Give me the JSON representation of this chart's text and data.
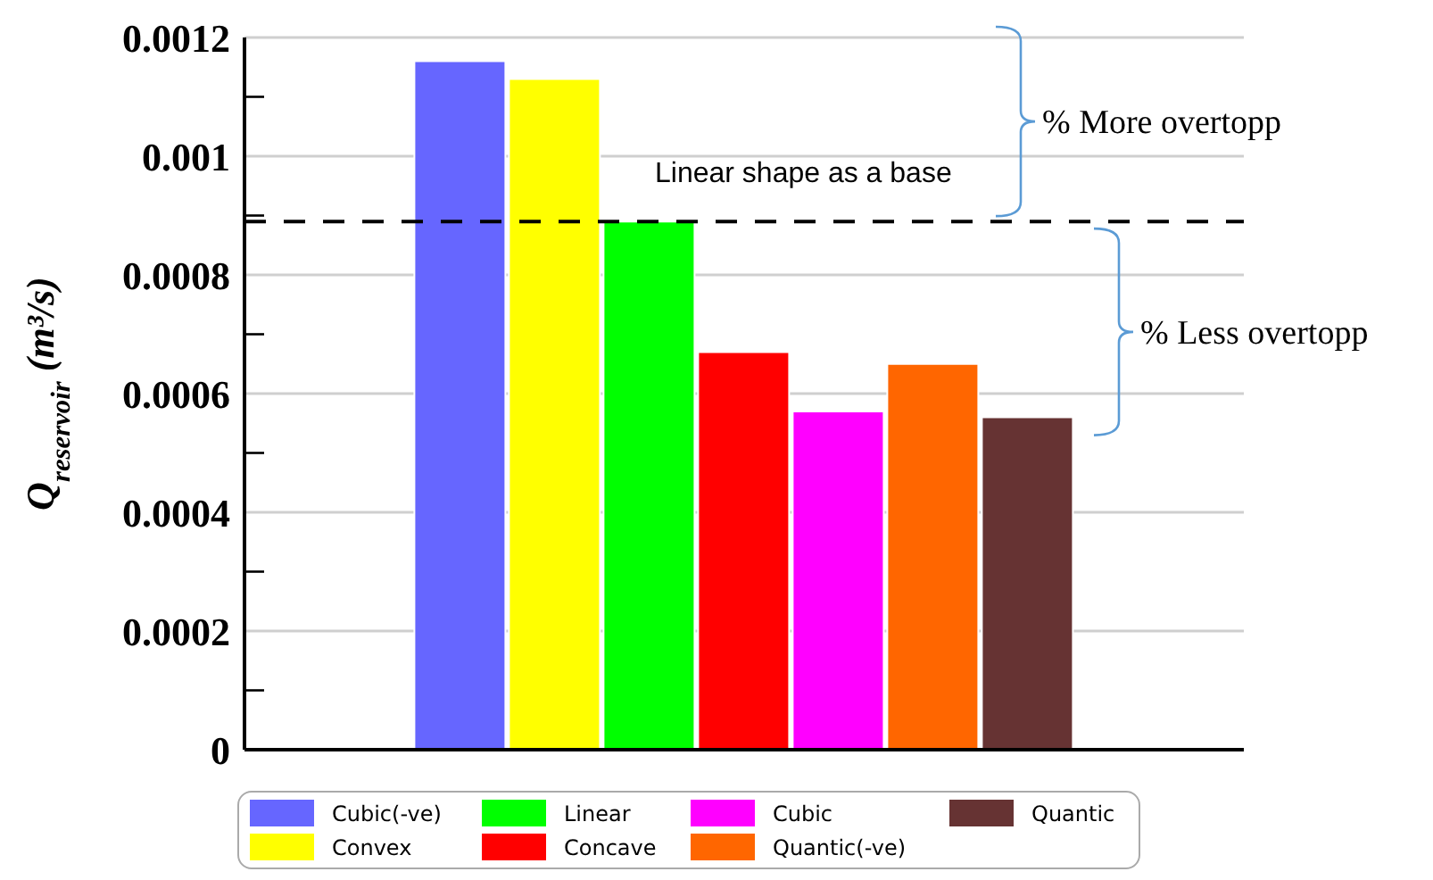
{
  "chart_data": {
    "type": "bar",
    "ylabel": "Q$_{reservoir}$ (m³/s)",
    "categories": [
      null
    ],
    "series": [
      {
        "name": "Cubic(-ve)",
        "color": "#6666ff",
        "values": [
          0.00116
        ]
      },
      {
        "name": "Convex",
        "color": "#ffff00",
        "values": [
          0.00113
        ]
      },
      {
        "name": "Linear",
        "color": "#00ff00",
        "values": [
          0.00089
        ]
      },
      {
        "name": "Concave",
        "color": "#ff0000",
        "values": [
          0.00067
        ]
      },
      {
        "name": "Cubic",
        "color": "#ff00ff",
        "values": [
          0.00057
        ]
      },
      {
        "name": "Quantic(-ve)",
        "color": "#ff6600",
        "values": [
          0.00065
        ]
      },
      {
        "name": "Quantic",
        "color": "#663333",
        "values": [
          0.00056
        ]
      }
    ],
    "ylim": [
      0,
      0.0012
    ],
    "yticks": [
      0,
      {
        "value": 0.0001,
        "label": null
      },
      0.0002,
      {
        "value": 0.0003,
        "label": null
      },
      0.0004,
      {
        "value": 0.0005,
        "label": null
      },
      0.0006,
      {
        "value": 0.0007,
        "label": null
      },
      0.0008,
      {
        "value": 0.0009,
        "label": null
      },
      0.001,
      {
        "value": 0.0011,
        "label": null
      },
      0.0012
    ],
    "grid": "y",
    "ref_lines": [
      {
        "axis": "y",
        "value": 0.00089,
        "label": "Linear shape as a base",
        "color": "#000000",
        "line_style": "dashed"
      }
    ],
    "annotations": [
      "% More overtopp",
      "% Less overtopp"
    ],
    "legend": "bottom"
  }
}
